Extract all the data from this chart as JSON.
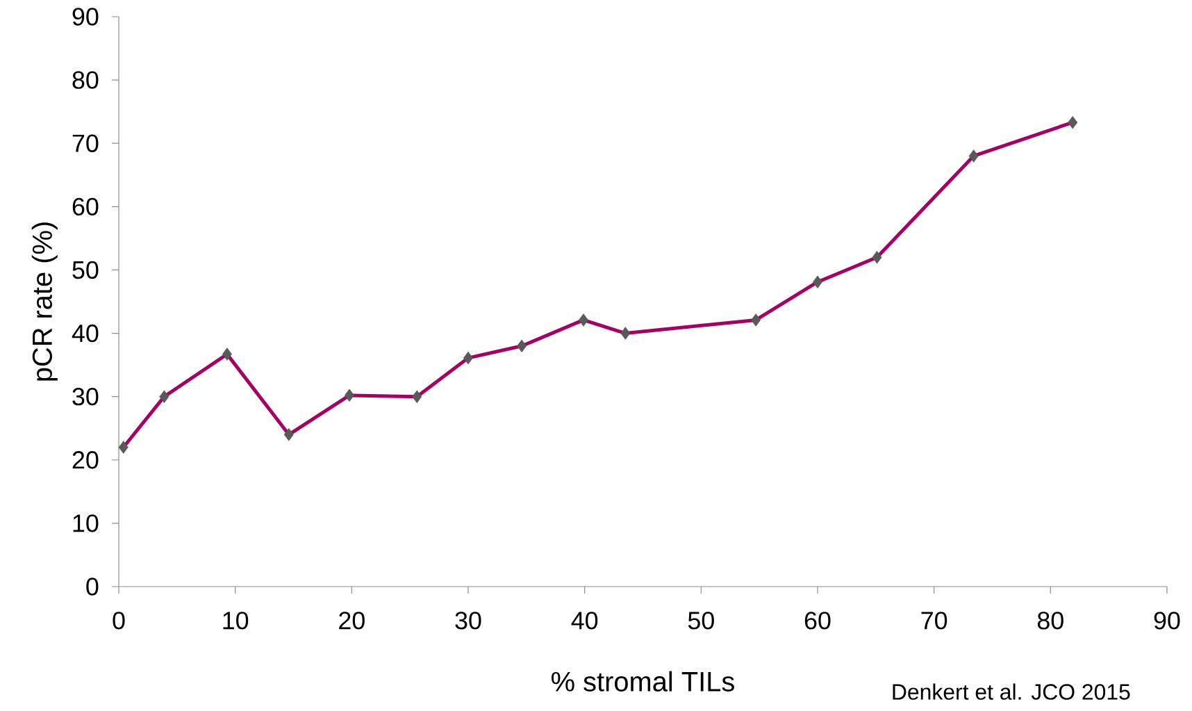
{
  "chart_data": {
    "type": "line",
    "xlabel": "% stromal TILs",
    "ylabel": "pCR rate (%)",
    "x": [
      0.4,
      3.9,
      9.3,
      14.6,
      19.8,
      25.6,
      30.0,
      34.6,
      39.9,
      43.5,
      54.7,
      60.0,
      65.1,
      73.4,
      81.9
    ],
    "values": [
      22.0,
      30.0,
      36.7,
      24.0,
      30.2,
      30.0,
      36.1,
      38.0,
      42.1,
      40.0,
      42.1,
      48.1,
      52.0,
      68.0,
      73.3
    ],
    "color": "#a50064",
    "marker": "diamond",
    "line_style": "solid",
    "xlim": [
      0,
      90
    ],
    "ylim": [
      0,
      90
    ],
    "xticks": [
      0,
      10,
      20,
      30,
      40,
      50,
      60,
      70,
      80,
      90
    ],
    "yticks": [
      0,
      10,
      20,
      30,
      40,
      50,
      60,
      70,
      80,
      90
    ],
    "annotations": [
      "Denkert et al. JCO 2015"
    ]
  }
}
